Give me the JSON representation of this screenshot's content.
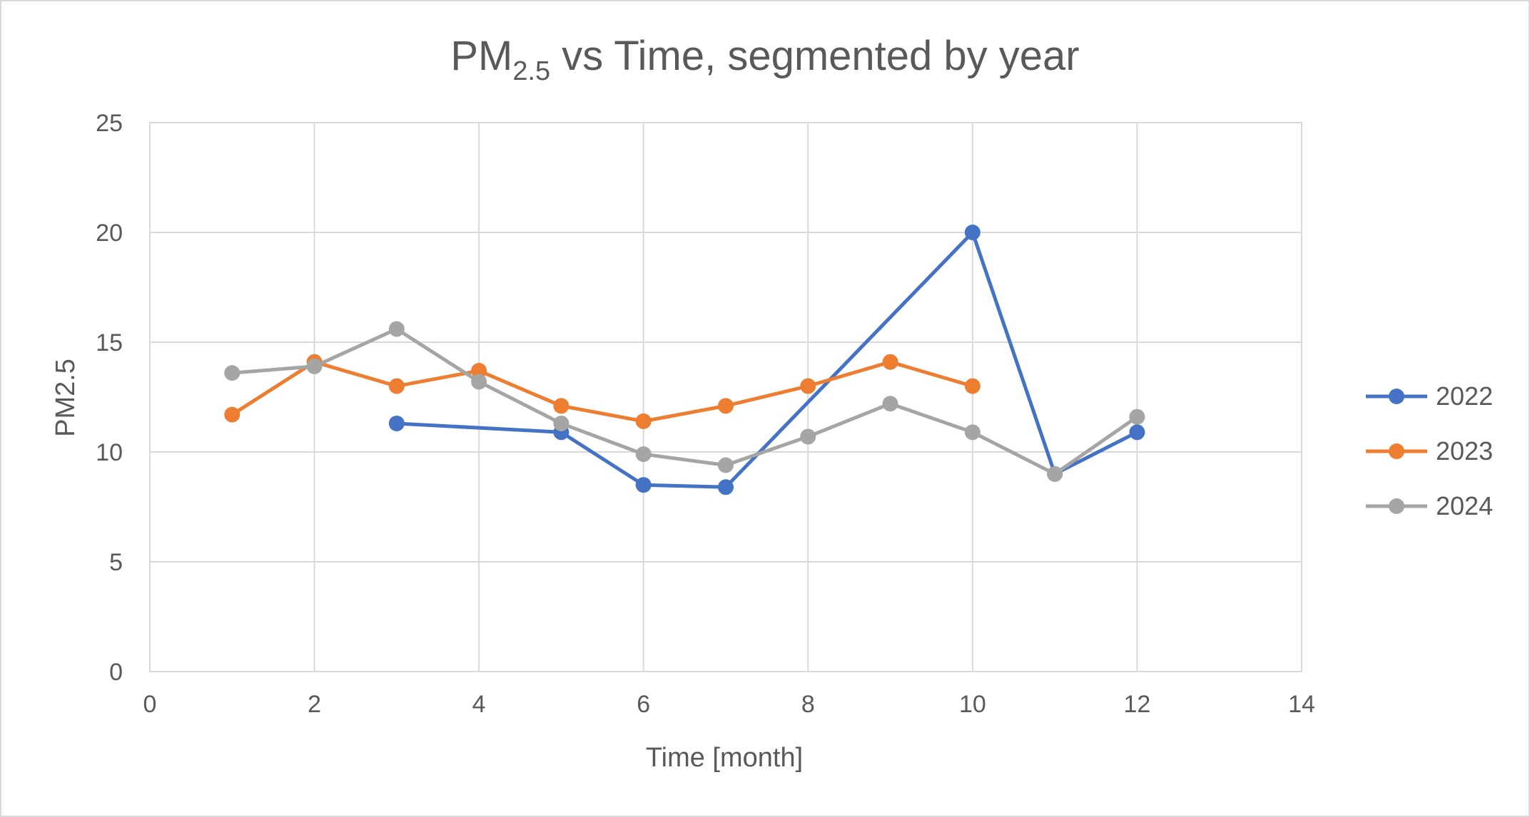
{
  "chart_data": {
    "type": "line",
    "title": {
      "main": "PM",
      "subscript": "2.5",
      "rest": " vs Time, segmented by year"
    },
    "xlabel": "Time [month]",
    "ylabel": "PM2.5",
    "xlim": [
      0,
      14
    ],
    "ylim": [
      0,
      25
    ],
    "x_ticks": [
      0,
      2,
      4,
      6,
      8,
      10,
      12,
      14
    ],
    "y_ticks": [
      0,
      5,
      10,
      15,
      20,
      25
    ],
    "grid": true,
    "legend_position": "right",
    "series": [
      {
        "name": "2022",
        "color": "#4472C4",
        "points": [
          [
            3,
            11.3
          ],
          [
            5,
            10.9
          ],
          [
            6,
            8.5
          ],
          [
            7,
            8.4
          ],
          [
            10,
            20.0
          ],
          [
            11,
            9.0
          ],
          [
            12,
            10.9
          ]
        ]
      },
      {
        "name": "2023",
        "color": "#ED7D31",
        "points": [
          [
            1,
            11.7
          ],
          [
            2,
            14.1
          ],
          [
            3,
            13.0
          ],
          [
            4,
            13.7
          ],
          [
            5,
            12.1
          ],
          [
            6,
            11.4
          ],
          [
            7,
            12.1
          ],
          [
            8,
            13.0
          ],
          [
            9,
            14.1
          ],
          [
            10,
            13.0
          ]
        ]
      },
      {
        "name": "2024",
        "color": "#A5A5A5",
        "points": [
          [
            1,
            13.6
          ],
          [
            2,
            13.9
          ],
          [
            3,
            15.6
          ],
          [
            4,
            13.2
          ],
          [
            5,
            11.3
          ],
          [
            6,
            9.9
          ],
          [
            7,
            9.4
          ],
          [
            8,
            10.7
          ],
          [
            9,
            12.2
          ],
          [
            10,
            10.9
          ],
          [
            11,
            9.0
          ],
          [
            12,
            11.6
          ]
        ]
      }
    ]
  }
}
